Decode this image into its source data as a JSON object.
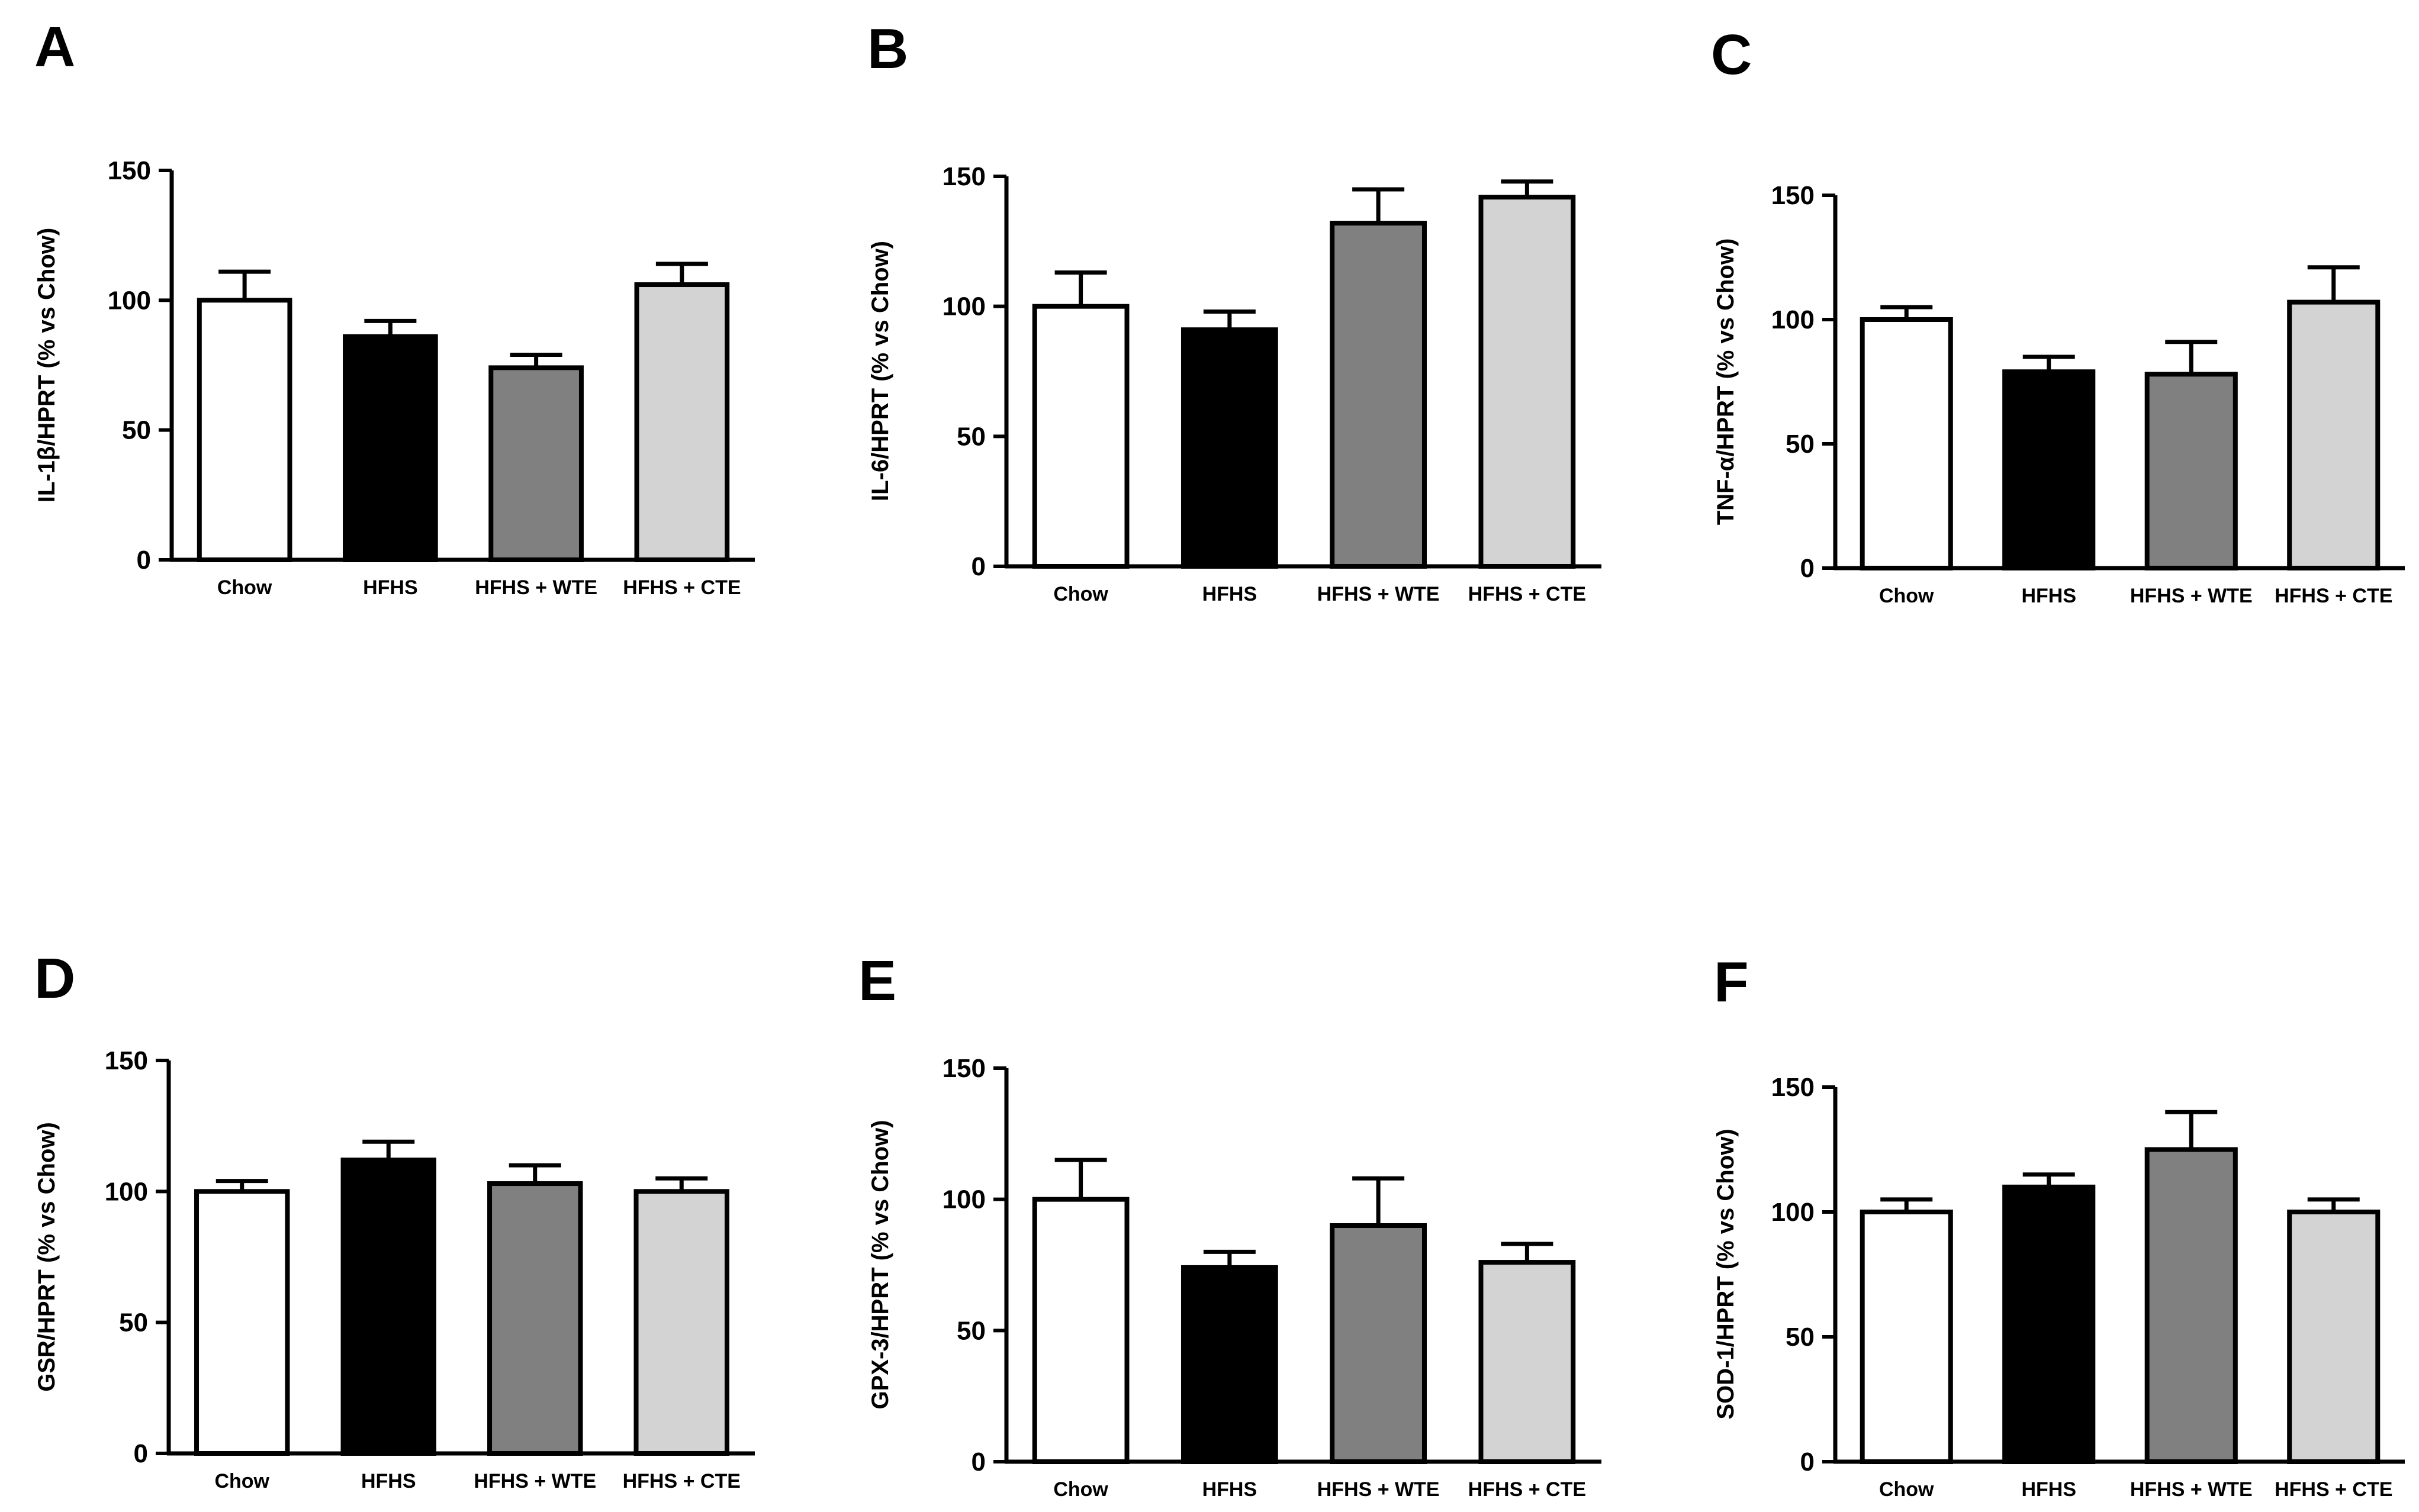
{
  "colors": {
    "bar_fills": [
      "#ffffff",
      "#000000",
      "#808080",
      "#d3d3d3"
    ],
    "stroke": "#000000"
  },
  "chart_data": [
    {
      "type": "bar",
      "panel_label": "A",
      "categories": [
        "Chow",
        "HFHS",
        "HFHS + WTE",
        "HFHS + CTE"
      ],
      "values": [
        100,
        86,
        74,
        106
      ],
      "errors": [
        11,
        6,
        5,
        8
      ],
      "ylabel": "IL-1β/HPRT (% vs Chow)",
      "ylim": [
        0,
        150
      ],
      "yticks": [
        0,
        50,
        100,
        150
      ]
    },
    {
      "type": "bar",
      "panel_label": "B",
      "categories": [
        "Chow",
        "HFHS",
        "HFHS + WTE",
        "HFHS + CTE"
      ],
      "values": [
        100,
        91,
        132,
        142
      ],
      "errors": [
        13,
        7,
        13,
        6
      ],
      "ylabel": "IL-6/HPRT (% vs Chow)",
      "ylim": [
        0,
        150
      ],
      "yticks": [
        0,
        50,
        100,
        150
      ]
    },
    {
      "type": "bar",
      "panel_label": "C",
      "categories": [
        "Chow",
        "HFHS",
        "HFHS + WTE",
        "HFHS + CTE"
      ],
      "values": [
        100,
        79,
        78,
        107
      ],
      "errors": [
        5,
        6,
        13,
        14
      ],
      "ylabel": "TNF-α/HPRT (% vs Chow)",
      "ylim": [
        0,
        150
      ],
      "yticks": [
        0,
        50,
        100,
        150
      ]
    },
    {
      "type": "bar",
      "panel_label": "D",
      "categories": [
        "Chow",
        "HFHS",
        "HFHS + WTE",
        "HFHS + CTE"
      ],
      "values": [
        100,
        112,
        103,
        100
      ],
      "errors": [
        4,
        7,
        7,
        5
      ],
      "ylabel": "GSR/HPRT (% vs Chow)",
      "ylim": [
        0,
        150
      ],
      "yticks": [
        0,
        50,
        100,
        150
      ]
    },
    {
      "type": "bar",
      "panel_label": "E",
      "categories": [
        "Chow",
        "HFHS",
        "HFHS + WTE",
        "HFHS + CTE"
      ],
      "values": [
        100,
        74,
        90,
        76
      ],
      "errors": [
        15,
        6,
        18,
        7
      ],
      "ylabel": "GPX-3/HPRT (% vs Chow)",
      "ylim": [
        0,
        150
      ],
      "yticks": [
        0,
        50,
        100,
        150
      ]
    },
    {
      "type": "bar",
      "panel_label": "F",
      "categories": [
        "Chow",
        "HFHS",
        "HFHS + WTE",
        "HFHS + CTE"
      ],
      "values": [
        100,
        110,
        125,
        100
      ],
      "errors": [
        5,
        5,
        15,
        5
      ],
      "ylabel": "SOD-1/HPRT (% vs Chow)",
      "ylim": [
        0,
        150
      ],
      "yticks": [
        0,
        50,
        100,
        150
      ]
    }
  ]
}
